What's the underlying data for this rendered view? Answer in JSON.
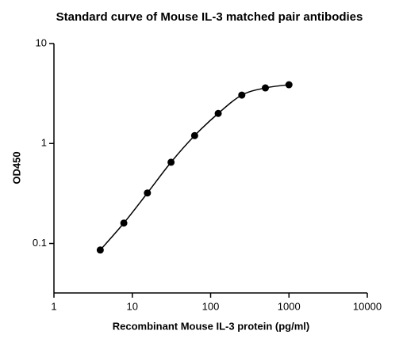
{
  "chart_data": {
    "type": "scatter",
    "title": "Standard curve of Mouse IL-3 matched pair antibodies",
    "x_label": "Recombinant Mouse IL-3 protein (pg/ml)",
    "y_label": "OD450",
    "x_scale": "log",
    "y_scale": "log",
    "xlim": [
      1,
      10000
    ],
    "xticks": [
      1,
      10,
      100,
      1000,
      10000
    ],
    "ylim": [
      0.032,
      10
    ],
    "yticks": [
      0.1,
      1,
      10
    ],
    "grid": false,
    "series": [
      {
        "color": "#000000",
        "line": "smooth",
        "x": [
          3.9,
          7.8,
          15.6,
          31.25,
          62.5,
          125,
          250,
          500,
          1000
        ],
        "values": [
          0.086,
          0.16,
          0.32,
          0.65,
          1.2,
          2.0,
          3.05,
          3.6,
          3.87
        ]
      }
    ]
  }
}
